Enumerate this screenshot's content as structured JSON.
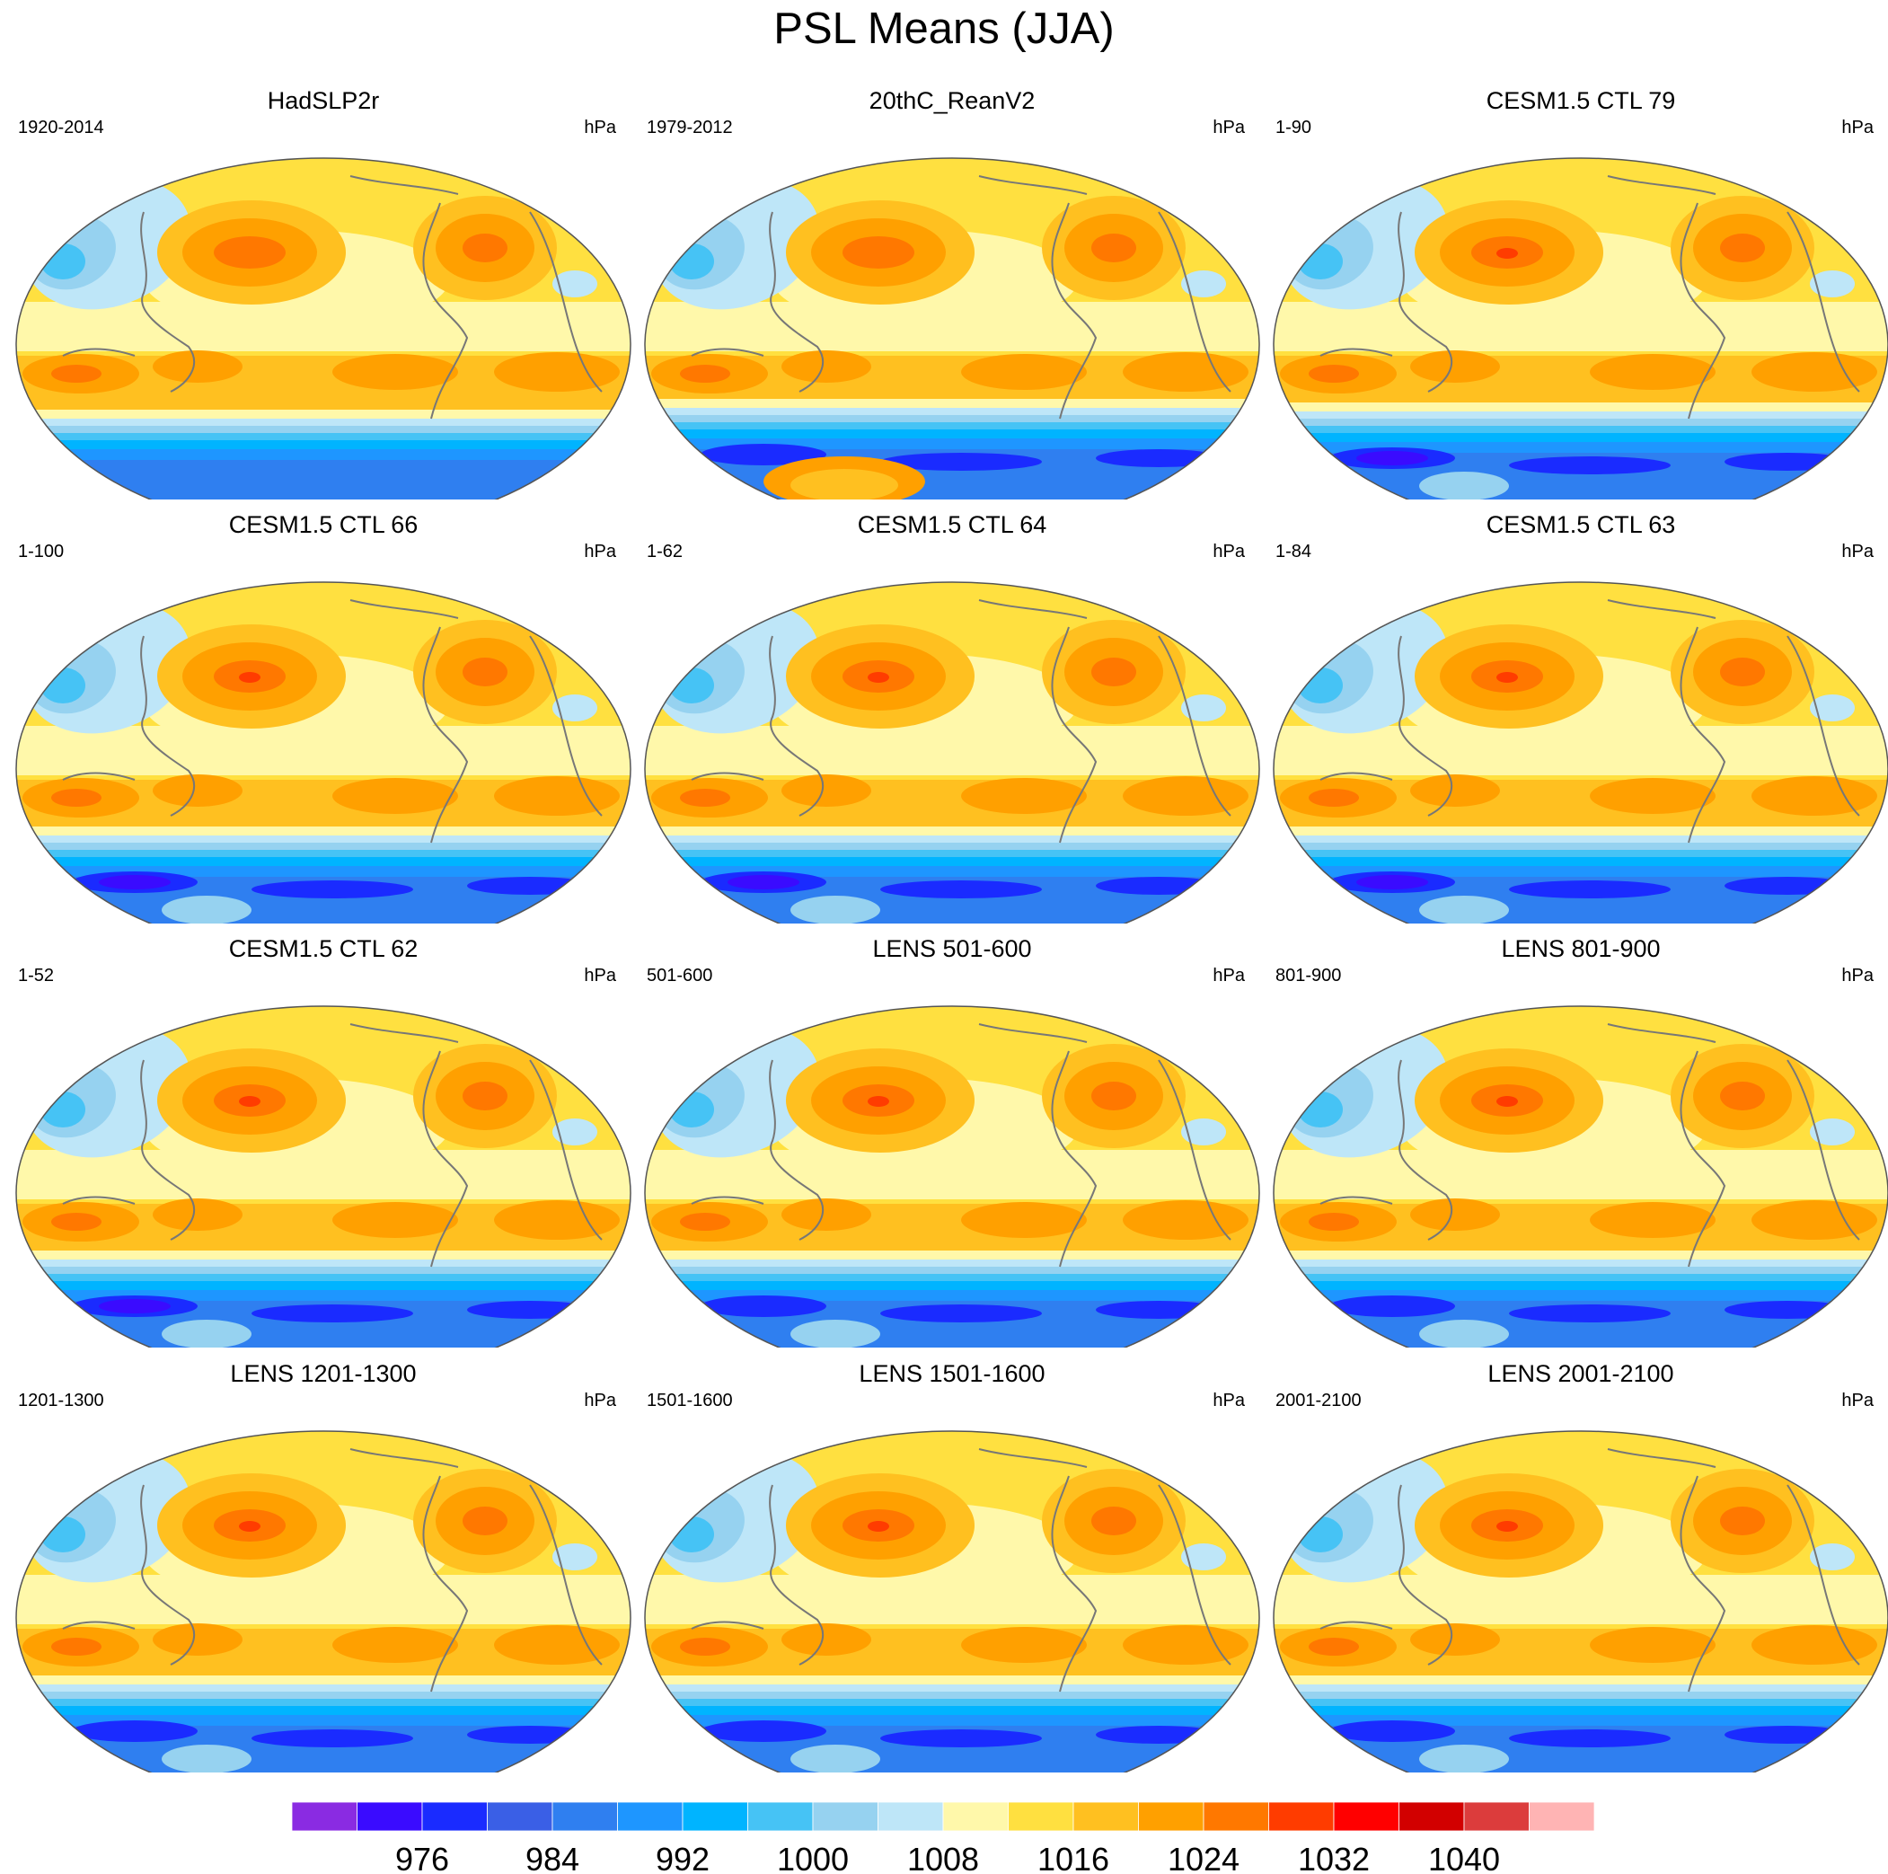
{
  "title": "PSL Means (JJA)",
  "units": "hPa",
  "panels": [
    {
      "name": "HadSLP2r",
      "period": "1920-2014",
      "variant": "obs"
    },
    {
      "name": "20thC_ReanV2",
      "period": "1979-2012",
      "variant": "rean"
    },
    {
      "name": "CESM1.5 CTL 79",
      "period": "1-90",
      "variant": "ctl"
    },
    {
      "name": "CESM1.5 CTL 66",
      "period": "1-100",
      "variant": "ctl"
    },
    {
      "name": "CESM1.5 CTL 64",
      "period": "1-62",
      "variant": "ctl"
    },
    {
      "name": "CESM1.5 CTL 63",
      "period": "1-84",
      "variant": "ctl"
    },
    {
      "name": "CESM1.5 CTL 62",
      "period": "1-52",
      "variant": "ctl"
    },
    {
      "name": "LENS 501-600",
      "period": "501-600",
      "variant": "lens"
    },
    {
      "name": "LENS 801-900",
      "period": "801-900",
      "variant": "lens"
    },
    {
      "name": "LENS 1201-1300",
      "period": "1201-1300",
      "variant": "lens"
    },
    {
      "name": "LENS 1501-1600",
      "period": "1501-1600",
      "variant": "lens"
    },
    {
      "name": "LENS 2001-2100",
      "period": "2001-2100",
      "variant": "lens"
    }
  ],
  "colorbar": {
    "colors": [
      "#8a2be2",
      "#3a0bff",
      "#1a2bff",
      "#3a5fe6",
      "#2f7ff0",
      "#1e96ff",
      "#00b4ff",
      "#46c3f5",
      "#96d2f0",
      "#bee6f8",
      "#fff8aa",
      "#ffe040",
      "#ffc020",
      "#ffa000",
      "#ff7800",
      "#ff3c00",
      "#ff0000",
      "#d20000",
      "#dc3c3c",
      "#ffb4b4"
    ],
    "tick_labels": [
      "976",
      "984",
      "992",
      "1000",
      "1008",
      "1016",
      "1024",
      "1032",
      "1040"
    ]
  }
}
